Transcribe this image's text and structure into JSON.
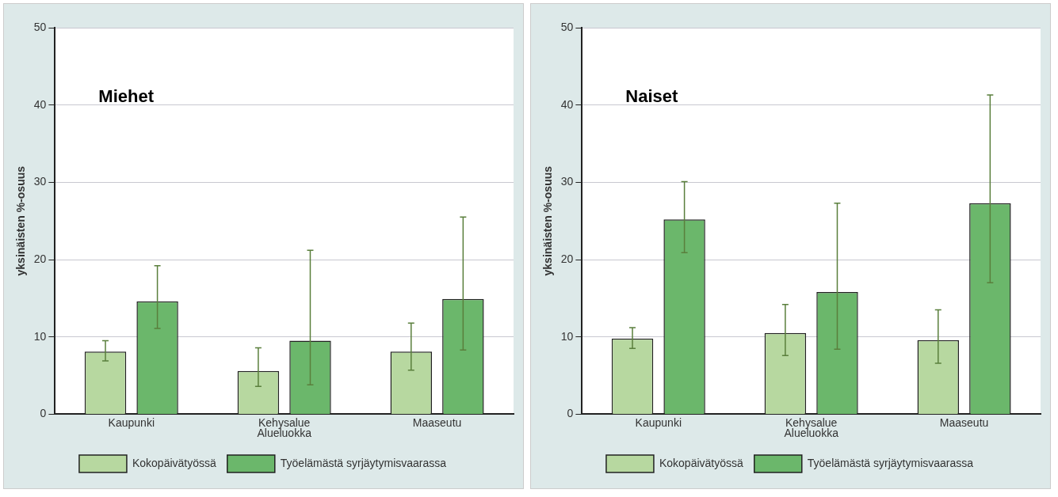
{
  "chart_data": [
    {
      "type": "bar",
      "title": "Miehet",
      "xlabel": "Alueluokka",
      "ylabel": "yksinäisten %-osuus",
      "categories": [
        "Kaupunki",
        "Kehysalue",
        "Maaseutu"
      ],
      "series": [
        {
          "name": "Kokopäivätyössä",
          "color": "#b7d8a0",
          "values": [
            8.1,
            5.6,
            8.1
          ],
          "errors": [
            [
              6.9,
              9.5
            ],
            [
              3.6,
              8.6
            ],
            [
              5.7,
              11.8
            ]
          ]
        },
        {
          "name": "Työelämästä syrjäytymisvaarassa",
          "color": "#6bb76b",
          "values": [
            14.6,
            9.5,
            14.9
          ],
          "errors": [
            [
              11.1,
              19.2
            ],
            [
              3.8,
              21.2
            ],
            [
              8.3,
              25.5
            ]
          ]
        }
      ],
      "ylim": [
        0,
        50
      ],
      "yticks": [
        0,
        10,
        20,
        30,
        40,
        50
      ],
      "grid": "y",
      "legend": "bottom"
    },
    {
      "type": "bar",
      "title": "Naiset",
      "xlabel": "Alueluokka",
      "ylabel": "yksinäisten %-osuus",
      "categories": [
        "Kaupunki",
        "Kehysalue",
        "Maaseutu"
      ],
      "series": [
        {
          "name": "Kokopäivätyössä",
          "color": "#b7d8a0",
          "values": [
            9.8,
            10.5,
            9.6
          ],
          "errors": [
            [
              8.5,
              11.2
            ],
            [
              7.6,
              14.2
            ],
            [
              6.6,
              13.5
            ]
          ]
        },
        {
          "name": "Työelämästä syrjäytymisvaarassa",
          "color": "#6bb76b",
          "values": [
            25.2,
            15.8,
            27.3
          ],
          "errors": [
            [
              20.9,
              30.1
            ],
            [
              8.4,
              27.3
            ],
            [
              17.0,
              41.3
            ]
          ]
        }
      ],
      "ylim": [
        0,
        50
      ],
      "yticks": [
        0,
        10,
        20,
        30,
        40,
        50
      ],
      "grid": "y",
      "legend": "bottom"
    }
  ]
}
